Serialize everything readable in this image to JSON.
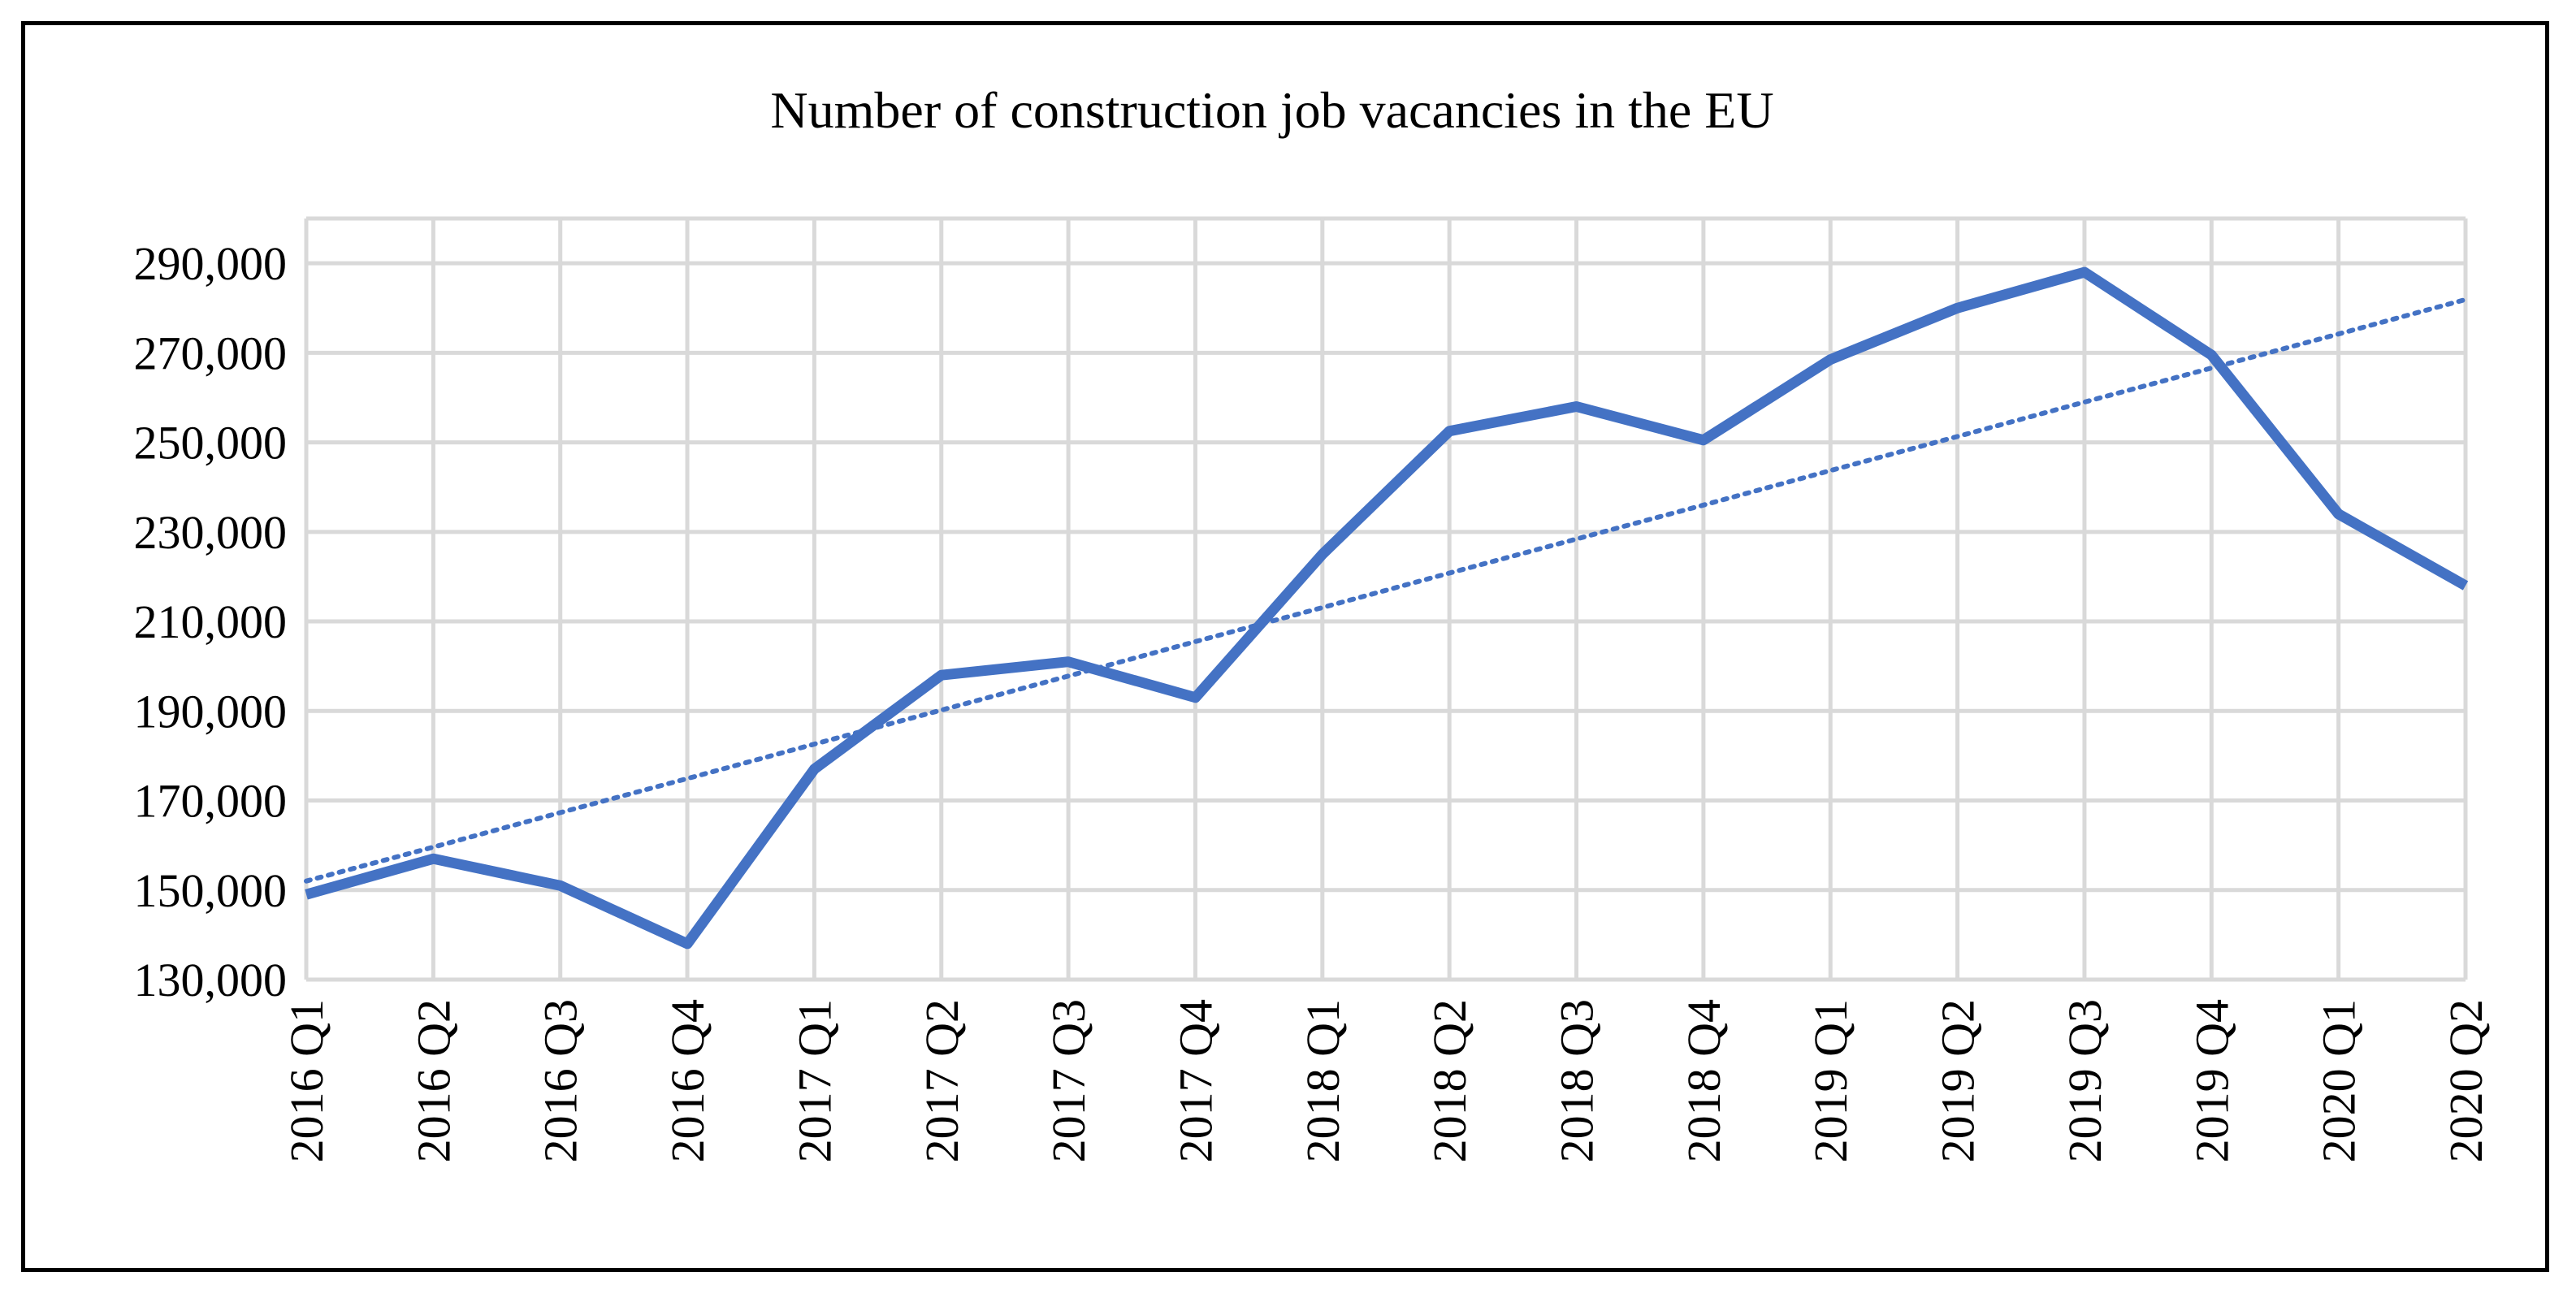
{
  "chart_data": {
    "type": "line",
    "title": "Number of construction job vacancies in the EU",
    "xlabel": "",
    "ylabel": "",
    "categories": [
      "2016 Q1",
      "2016 Q2",
      "2016 Q3",
      "2016 Q4",
      "2017 Q1",
      "2017 Q2",
      "2017 Q3",
      "2017 Q4",
      "2018 Q1",
      "2018 Q2",
      "2018 Q3",
      "2018 Q4",
      "2019 Q1",
      "2019 Q2",
      "2019 Q3",
      "2019 Q4",
      "2020 Q1",
      "2020 Q2"
    ],
    "series": [
      {
        "values": [
          149000,
          157000,
          151000,
          138000,
          177000,
          198000,
          201000,
          193000,
          225000,
          252500,
          258000,
          250500,
          268500,
          280000,
          288000,
          269500,
          234000,
          218000
        ],
        "color": "#4472c4",
        "style": "solid"
      },
      {
        "trendline": "linear",
        "values": [
          152000,
          159600,
          167300,
          174900,
          182600,
          190200,
          197800,
          205500,
          213100,
          220800,
          228400,
          236000,
          243700,
          251300,
          259000,
          266600,
          274200,
          281900
        ],
        "color": "#4472c4",
        "style": "dotted"
      }
    ],
    "yticks": [
      130000,
      150000,
      170000,
      190000,
      210000,
      230000,
      250000,
      270000,
      290000
    ],
    "ytick_labels": [
      "130,000",
      "150,000",
      "170,000",
      "190,000",
      "210,000",
      "230,000",
      "250,000",
      "270,000",
      "290,000"
    ],
    "ylim": [
      130000,
      300000
    ],
    "grid": true,
    "legend": "none"
  }
}
